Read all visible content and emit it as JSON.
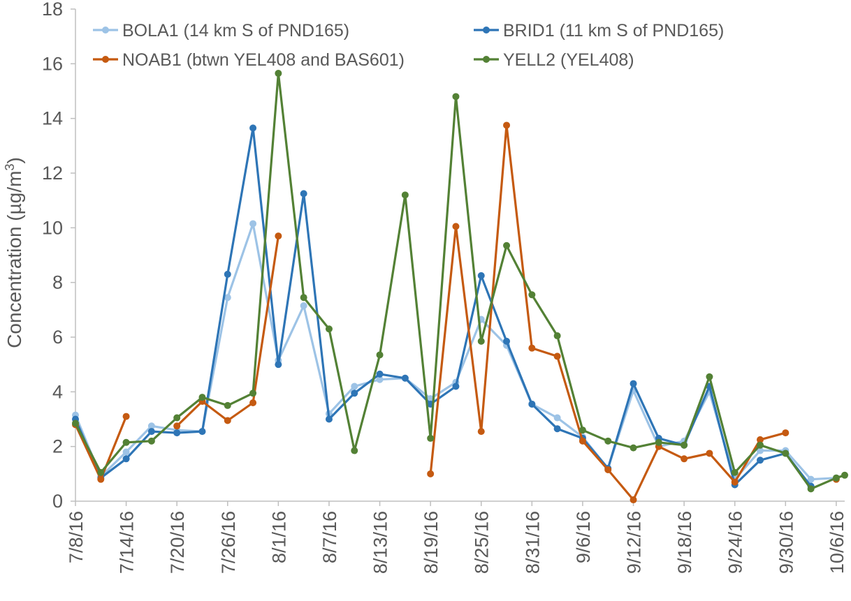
{
  "chart_data": {
    "type": "line",
    "title": "",
    "xlabel": "",
    "ylabel": "Concentration (µg/m",
    "ylabel_superscript": "3",
    "ylabel_suffix": ")",
    "ylim": [
      0,
      18
    ],
    "yticks": [
      0,
      2,
      4,
      6,
      8,
      10,
      12,
      14,
      16,
      18
    ],
    "grid": false,
    "legend_position": "top",
    "x_dates": [
      "7/8/16",
      "7/11/16",
      "7/14/16",
      "7/17/16",
      "7/20/16",
      "7/23/16",
      "7/26/16",
      "7/29/16",
      "8/1/16",
      "8/4/16",
      "8/7/16",
      "8/10/16",
      "8/13/16",
      "8/16/16",
      "8/19/16",
      "8/22/16",
      "8/25/16",
      "8/28/16",
      "8/31/16",
      "9/3/16",
      "9/6/16",
      "9/9/16",
      "9/12/16",
      "9/15/16",
      "9/18/16",
      "9/21/16",
      "9/24/16",
      "9/27/16",
      "9/30/16",
      "10/3/16",
      "10/6/16",
      "10/7/16"
    ],
    "x_tick_labels": [
      "7/8/16",
      "7/14/16",
      "7/20/16",
      "7/26/16",
      "8/1/16",
      "8/7/16",
      "8/13/16",
      "8/19/16",
      "8/25/16",
      "8/31/16",
      "9/6/16",
      "9/12/16",
      "9/18/16",
      "9/24/16",
      "9/30/16",
      "10/6/16"
    ],
    "x_tick_days": [
      0,
      6,
      12,
      18,
      24,
      30,
      36,
      42,
      48,
      54,
      60,
      66,
      72,
      78,
      84,
      90
    ],
    "x_day_range": [
      0,
      91
    ],
    "series": [
      {
        "name": "BOLA1 (14 km S of PND165)",
        "color": "#9dc3e6",
        "days": [
          0,
          3,
          6,
          9,
          12,
          15,
          18,
          21,
          24,
          27,
          30,
          33,
          36,
          39,
          42,
          45,
          48,
          51,
          54,
          57,
          60,
          63,
          66,
          69,
          72,
          75,
          78,
          81,
          84,
          87,
          90
        ],
        "values": [
          3.15,
          0.9,
          1.8,
          2.75,
          2.6,
          2.55,
          7.45,
          10.15,
          5.15,
          7.15,
          3.2,
          4.2,
          4.45,
          4.5,
          3.75,
          4.35,
          6.65,
          5.7,
          3.55,
          3.05,
          2.35,
          1.2,
          4.05,
          2.0,
          2.2,
          4.0,
          0.8,
          1.85,
          1.85,
          0.8,
          0.85
        ]
      },
      {
        "name": "BRID1 (11 km S of PND165)",
        "color": "#2e75b6",
        "days": [
          0,
          3,
          6,
          9,
          12,
          15,
          18,
          21,
          24,
          27,
          30,
          33,
          36,
          39,
          42,
          45,
          48,
          51,
          54,
          57,
          60,
          63,
          66,
          69,
          72,
          75,
          78,
          81,
          84,
          87
        ],
        "values": [
          3.0,
          0.85,
          1.55,
          2.55,
          2.5,
          2.55,
          8.3,
          13.65,
          5.0,
          11.25,
          3.0,
          3.95,
          4.65,
          4.5,
          3.55,
          4.2,
          8.25,
          5.85,
          3.55,
          2.65,
          2.3,
          1.2,
          4.3,
          2.3,
          2.05,
          4.2,
          0.6,
          1.5,
          1.75,
          0.55
        ]
      },
      {
        "name": "NOAB1 (btwn YEL408 and BAS601)",
        "color": "#c55a11",
        "segments": [
          {
            "days": [
              0,
              3,
              6
            ],
            "values": [
              2.8,
              0.8,
              3.1
            ]
          },
          {
            "days": [
              12,
              15,
              18,
              21,
              24
            ],
            "values": [
              2.75,
              3.65,
              2.95,
              3.6,
              9.7
            ]
          },
          {
            "days": [
              42,
              45,
              48,
              51,
              54,
              57,
              60,
              63,
              66,
              69,
              72,
              75,
              78,
              81,
              84
            ],
            "values": [
              1.0,
              10.05,
              2.55,
              13.75,
              5.6,
              5.3,
              2.2,
              1.15,
              0.05,
              2.0,
              1.55,
              1.75,
              0.7,
              2.25,
              2.5
            ]
          },
          {
            "days": [
              90
            ],
            "values": [
              0.8
            ]
          }
        ]
      },
      {
        "name": "YELL2 (YEL408)",
        "color": "#538135",
        "days": [
          0,
          3,
          6,
          9,
          12,
          15,
          18,
          21,
          24,
          27,
          30,
          33,
          36,
          39,
          42,
          45,
          48,
          51,
          54,
          57,
          60,
          63,
          66,
          69,
          72,
          75,
          78,
          81,
          84,
          87,
          90,
          91
        ],
        "values": [
          2.85,
          1.05,
          2.15,
          2.2,
          3.05,
          3.8,
          3.5,
          3.95,
          15.65,
          7.45,
          6.3,
          1.85,
          5.35,
          11.2,
          2.3,
          14.8,
          5.85,
          9.35,
          7.55,
          6.05,
          2.6,
          2.2,
          1.95,
          2.15,
          2.05,
          4.55,
          1.05,
          2.05,
          1.75,
          0.45,
          0.85,
          0.95
        ]
      }
    ]
  }
}
